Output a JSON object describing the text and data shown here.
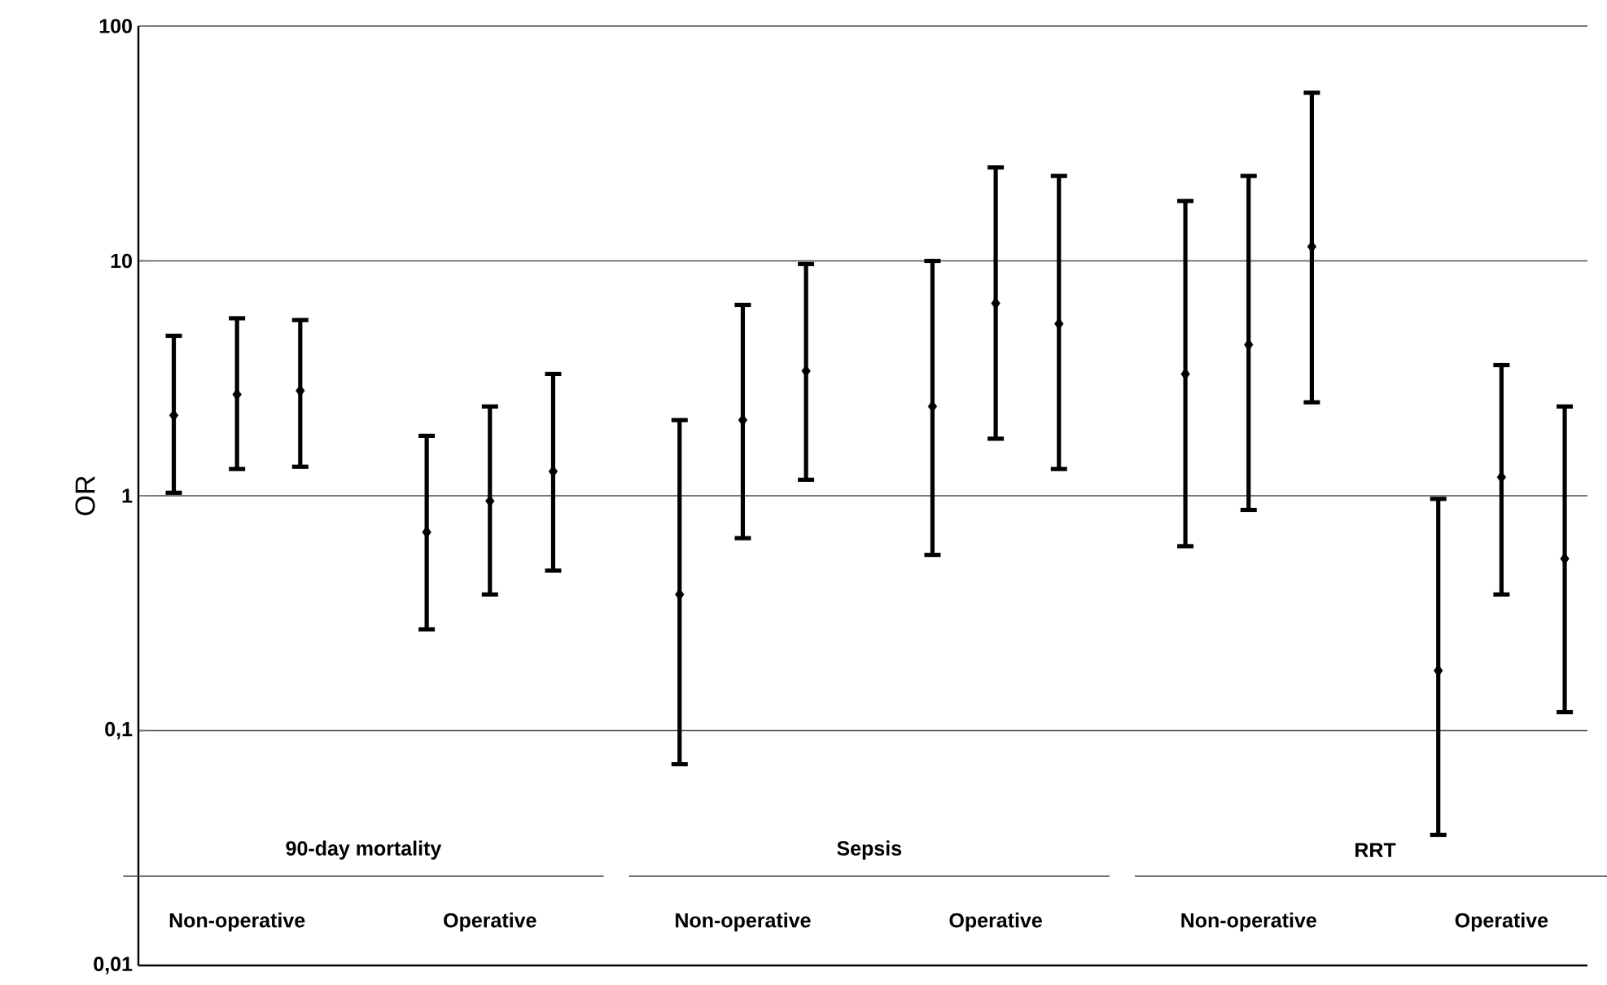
{
  "chart_data": {
    "type": "scatter",
    "ylabel": "OR",
    "log": "y",
    "categories": [
      "Non-operative",
      "Operative",
      "Non-operative",
      "Operative",
      "Non-operative",
      "Operative"
    ],
    "annotations": [
      "90-day mortality",
      "Sepsis",
      "RRT"
    ],
    "ylim": [
      0.01,
      100
    ],
    "yticks": [
      {
        "value": 0.01,
        "label": "0,01"
      },
      {
        "value": 0.1,
        "label": "0,1"
      },
      1,
      10,
      100
    ],
    "grid": "y",
    "marker": "diamond",
    "series": [
      {
        "color": "#000000",
        "values": [
          2.2,
          0.7,
          0.38,
          2.4,
          3.3,
          0.18
        ],
        "errors": [
          [
            1.03,
            4.8
          ],
          [
            0.27,
            1.8
          ],
          [
            0.072,
            2.1
          ],
          [
            0.56,
            10
          ],
          [
            0.61,
            18
          ],
          [
            0.036,
            0.97
          ]
        ]
      },
      {
        "color": "#000000",
        "values": [
          2.7,
          0.95,
          2.1,
          6.6,
          4.4,
          1.2
        ],
        "errors": [
          [
            1.3,
            5.7
          ],
          [
            0.38,
            2.4
          ],
          [
            0.66,
            6.5
          ],
          [
            1.75,
            25
          ],
          [
            0.87,
            23
          ],
          [
            0.38,
            3.6
          ]
        ]
      },
      {
        "color": "#000000",
        "values": [
          2.8,
          1.27,
          3.4,
          5.4,
          11.5,
          0.54
        ],
        "errors": [
          [
            1.33,
            5.6
          ],
          [
            0.48,
            3.3
          ],
          [
            1.17,
            9.7
          ],
          [
            1.3,
            23
          ],
          [
            2.5,
            52
          ],
          [
            0.12,
            2.4
          ]
        ]
      }
    ]
  }
}
